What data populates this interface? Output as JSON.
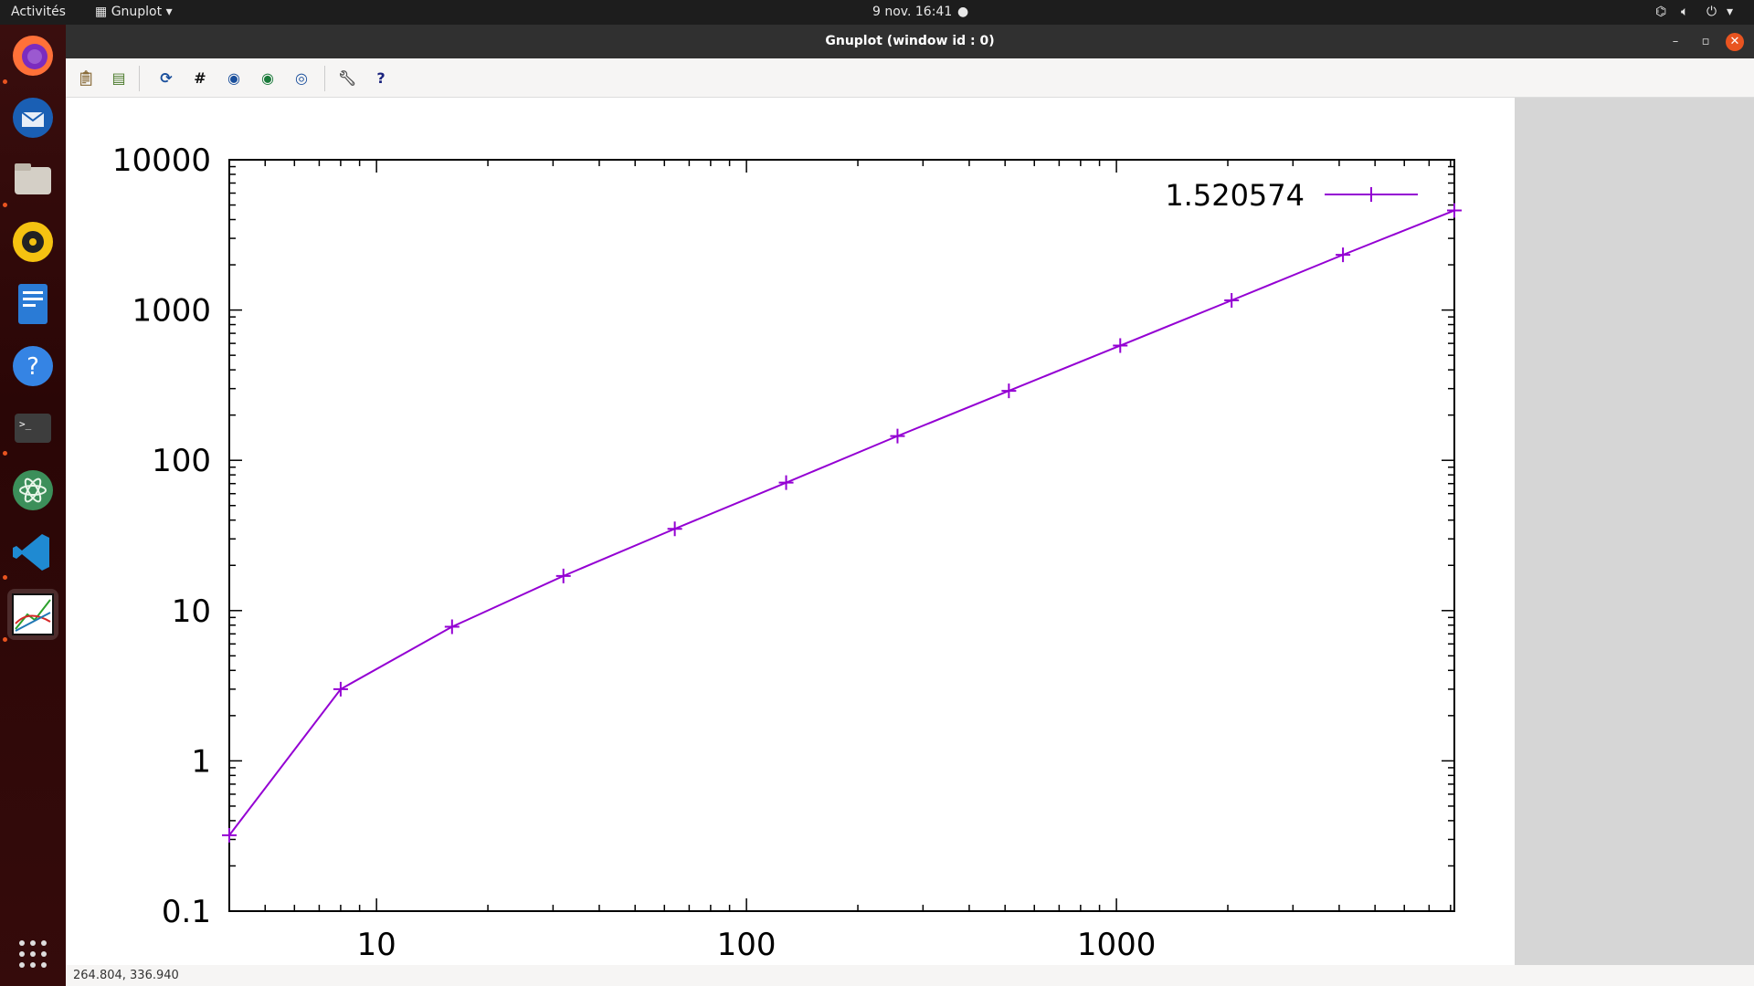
{
  "topbar": {
    "activities": "Activités",
    "app_menu": "Gnuplot",
    "clock": "9 nov.  16:41"
  },
  "window": {
    "title": "Gnuplot (window id : 0)"
  },
  "status": {
    "coords": "264.804,  336.940"
  },
  "colors": {
    "series": "#9400d3",
    "accent": "#e95420"
  },
  "chart_data": {
    "type": "line",
    "xscale": "log",
    "yscale": "log",
    "xlim": [
      4,
      8192
    ],
    "ylim": [
      0.1,
      10000
    ],
    "x_ticks": [
      "10",
      "100",
      "1000"
    ],
    "y_ticks": [
      "0.1",
      "1",
      "10",
      "100",
      "1000",
      "10000"
    ],
    "legend": "top-right",
    "series": [
      {
        "name": "1.520574",
        "x": [
          4,
          8,
          16,
          32,
          64,
          128,
          256,
          512,
          1024,
          2048,
          4096,
          8192
        ],
        "y": [
          0.32,
          3.0,
          7.8,
          17,
          35,
          71,
          145,
          290,
          580,
          1160,
          2330,
          4600
        ]
      }
    ]
  }
}
